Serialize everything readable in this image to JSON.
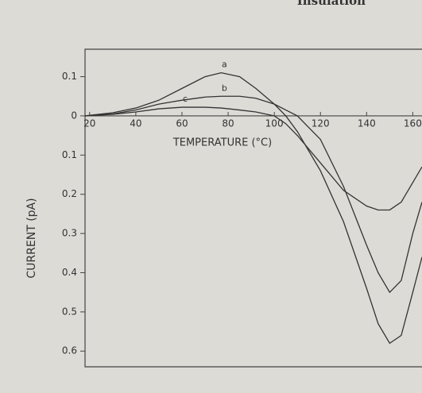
{
  "chart_data": {
    "type": "line",
    "page_heading": "Insulation",
    "xlabel": "TEMPERATURE (°C)",
    "ylabel": "CURRENT (pA)",
    "x": [
      18,
      30,
      40,
      50,
      60,
      70,
      77,
      85,
      92,
      100,
      105,
      110,
      120,
      130,
      140,
      145,
      150,
      155,
      160,
      164
    ],
    "series": [
      {
        "name": "a",
        "color": "#333333",
        "values": [
          0,
          0.008,
          0.02,
          0.04,
          0.07,
          0.1,
          0.11,
          0.1,
          0.07,
          0.03,
          0.0,
          -0.04,
          -0.14,
          -0.27,
          -0.44,
          -0.53,
          -0.58,
          -0.56,
          -0.45,
          -0.36
        ]
      },
      {
        "name": "b",
        "color": "#333333",
        "values": [
          0,
          0.005,
          0.015,
          0.03,
          0.04,
          0.048,
          0.05,
          0.05,
          0.045,
          0.03,
          0.015,
          0,
          -0.06,
          -0.18,
          -0.33,
          -0.4,
          -0.45,
          -0.42,
          -0.3,
          -0.22
        ]
      },
      {
        "name": "c",
        "color": "#333333",
        "values": [
          0,
          0.004,
          0.01,
          0.018,
          0.022,
          0.022,
          0.02,
          0.015,
          0.01,
          0,
          -0.02,
          -0.05,
          -0.12,
          -0.19,
          -0.23,
          -0.24,
          -0.24,
          -0.22,
          -0.17,
          -0.13
        ]
      }
    ],
    "xlim": [
      18,
      164
    ],
    "xticks": [
      20,
      40,
      60,
      80,
      100,
      120,
      140,
      160
    ],
    "ylim": [
      -0.64,
      0.17
    ],
    "yticks": [
      0.1,
      0,
      {
        "value": -0.1,
        "label": "0.1"
      },
      {
        "value": -0.2,
        "label": "0.2"
      },
      {
        "value": -0.3,
        "label": "0.3"
      },
      {
        "value": -0.4,
        "label": "0.4"
      },
      {
        "value": -0.5,
        "label": "0.5"
      },
      {
        "value": -0.6,
        "label": "0.6"
      }
    ]
  }
}
